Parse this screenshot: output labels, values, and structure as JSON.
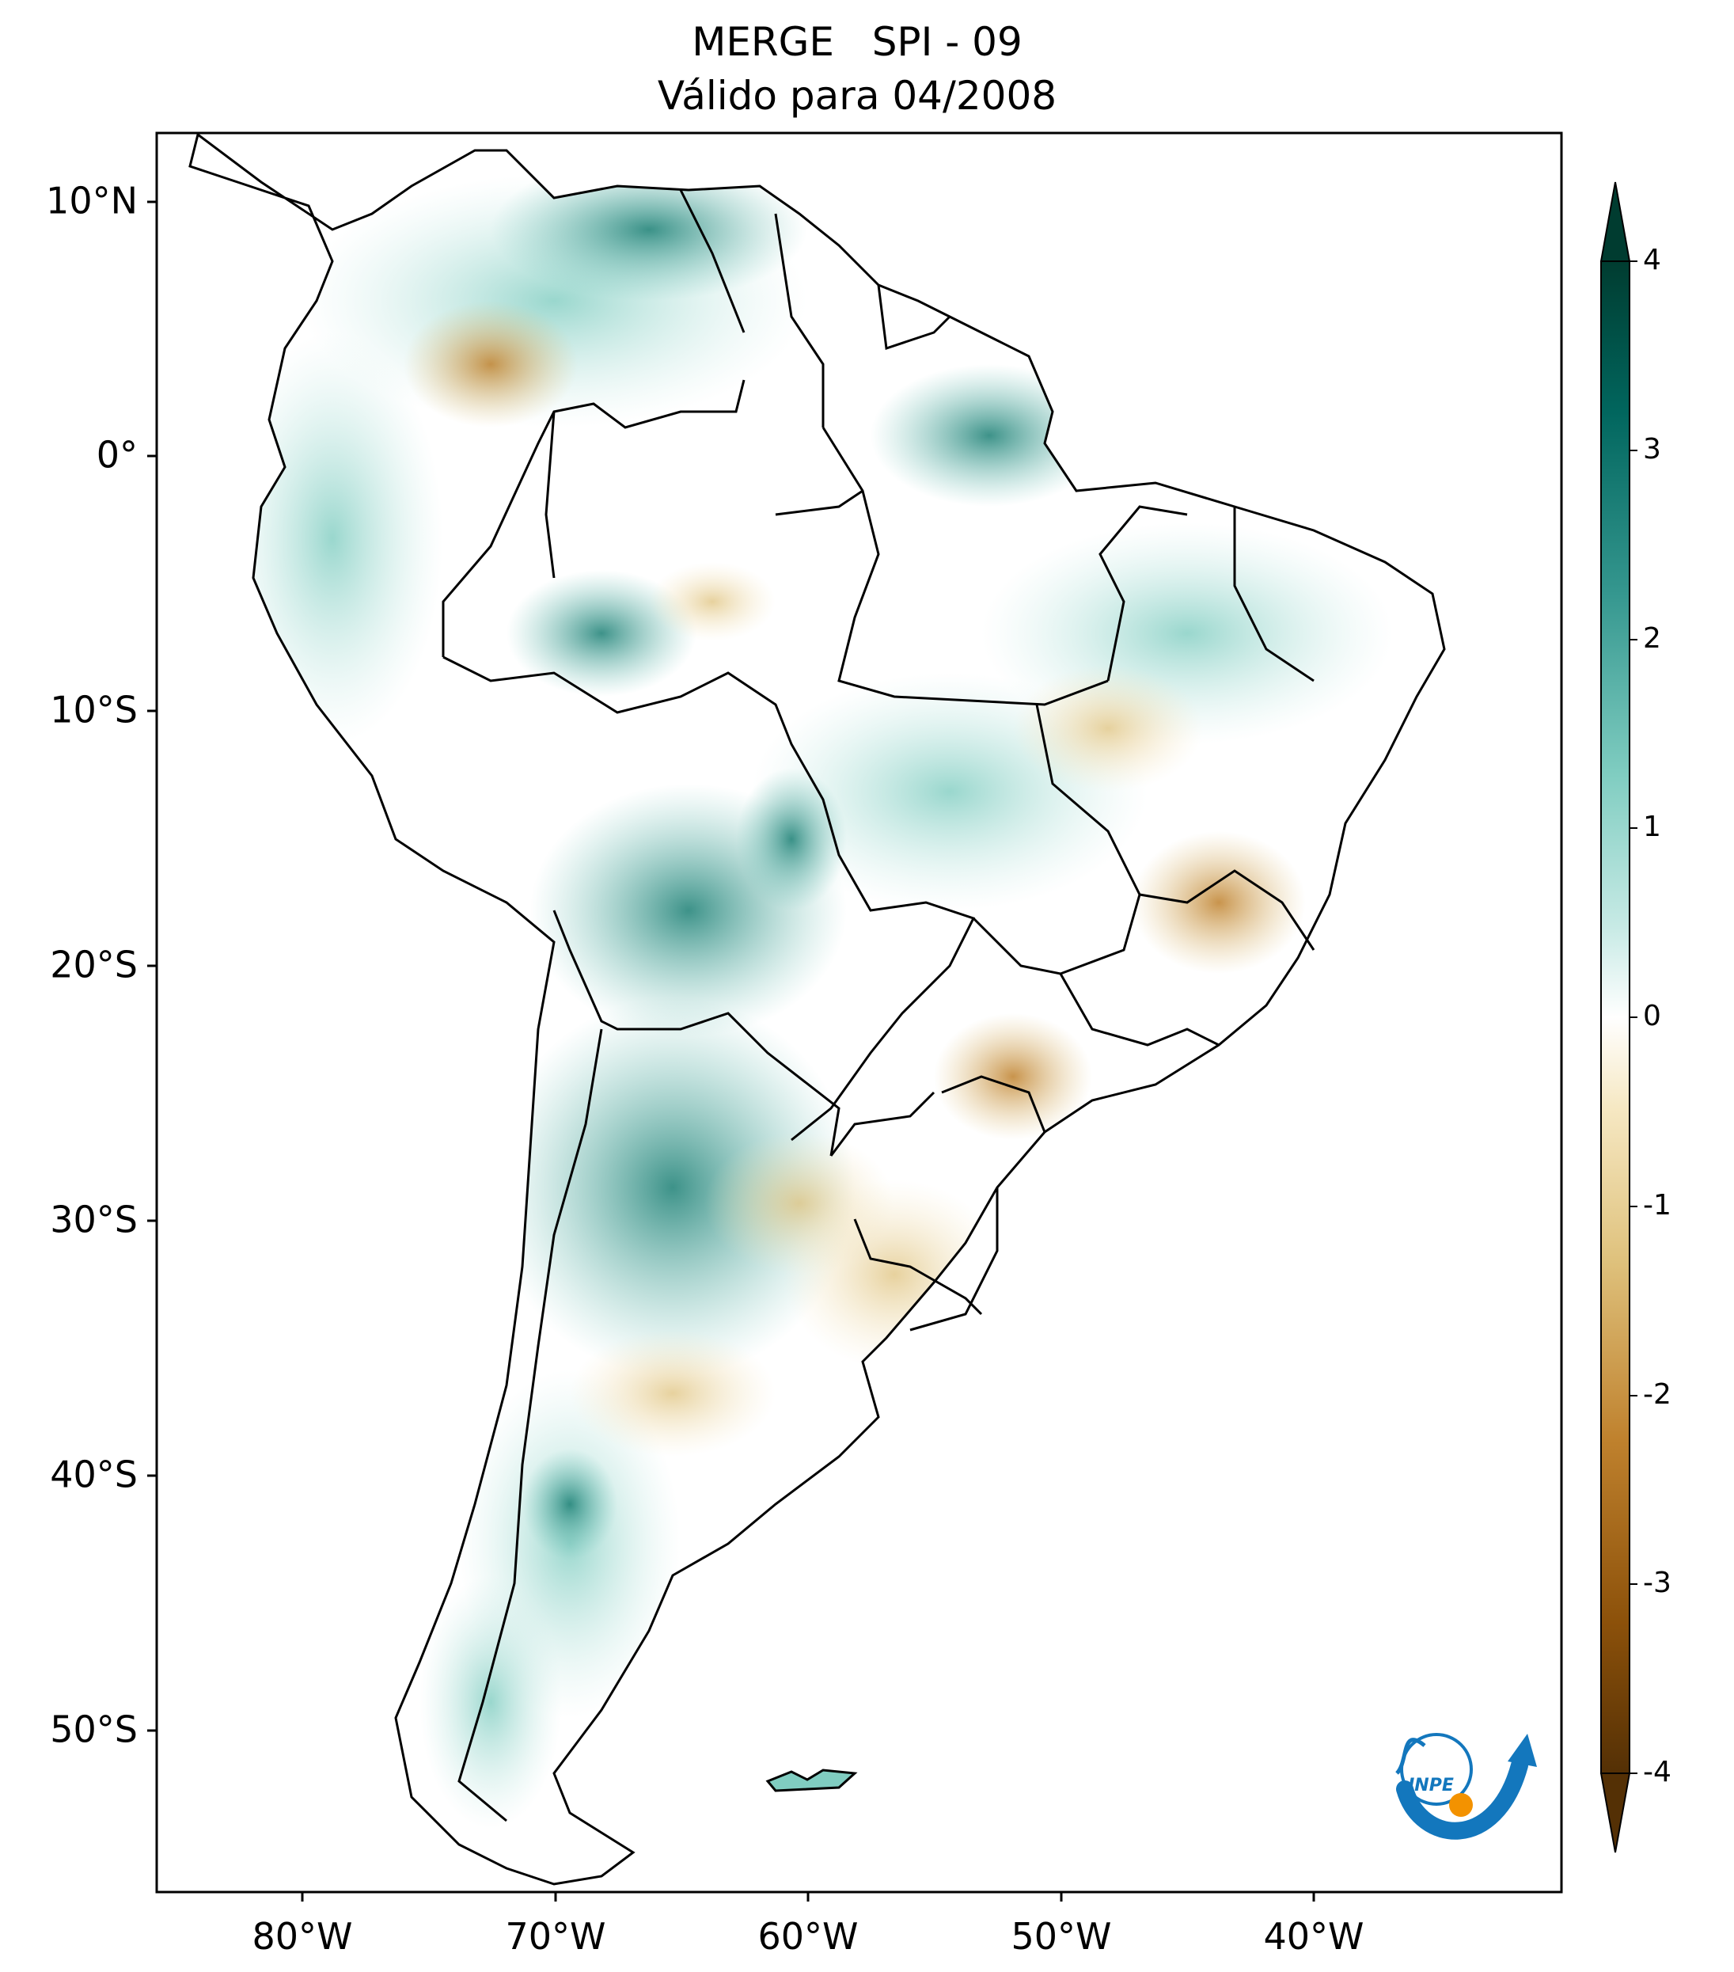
{
  "title": {
    "line1": "MERGE   SPI - 09",
    "line2": "Válido para 04/2008"
  },
  "map": {
    "lat_ticks": [
      "10°N",
      "0°",
      "10°S",
      "20°S",
      "30°S",
      "40°S",
      "50°S"
    ],
    "lon_ticks": [
      "80°W",
      "70°W",
      "60°W",
      "50°W",
      "40°W"
    ],
    "colorbar": {
      "ticks": [
        "4",
        "3",
        "2",
        "1",
        "0",
        "-1",
        "-2",
        "-3",
        "-4"
      ],
      "range": [
        -4,
        4
      ],
      "colors": [
        "#543005",
        "#8c510a",
        "#bf812d",
        "#dfc27d",
        "#f6e8c3",
        "#ffffff",
        "#c7eae5",
        "#80cdc1",
        "#35978f",
        "#01665e",
        "#003c30"
      ]
    },
    "logo": {
      "text": "INPE"
    }
  }
}
